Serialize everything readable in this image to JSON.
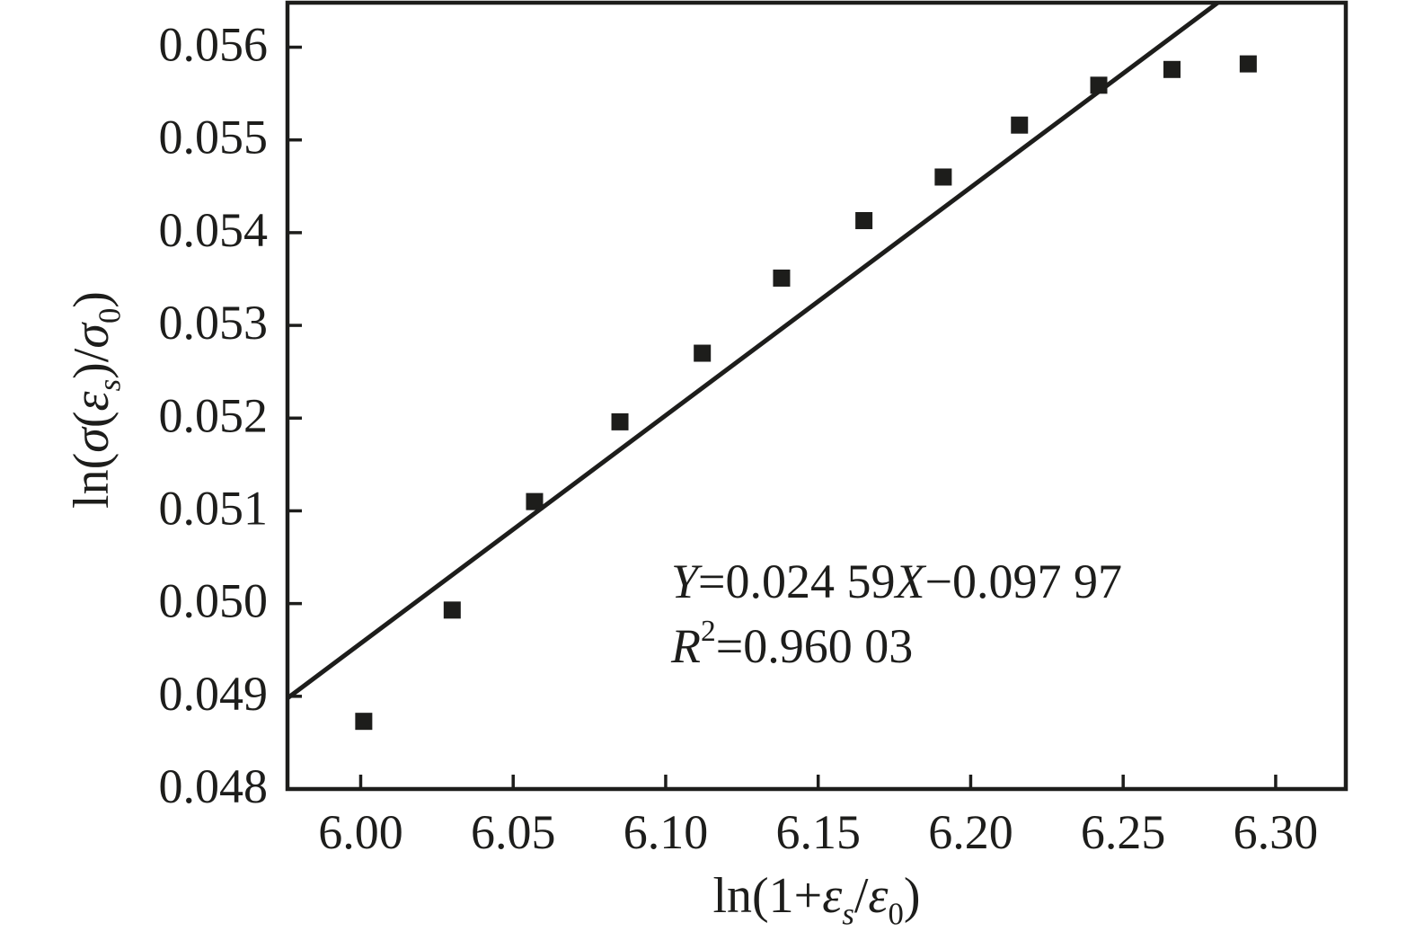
{
  "figure": {
    "background_color": "#ffffff",
    "ink_color": "#1d1d1b"
  },
  "chart_data": {
    "type": "scatter",
    "title": "",
    "xlabel": "ln(1+εₛ/ε₀)",
    "ylabel": "ln(σ(εₛ)/σ₀)",
    "xlabel_parts": [
      {
        "t": "ln(1+"
      },
      {
        "t": "ε",
        "i": true
      },
      {
        "t": "s",
        "sub": true,
        "i": true
      },
      {
        "t": "/"
      },
      {
        "t": "ε",
        "i": true
      },
      {
        "t": "0",
        "sub": true
      },
      {
        "t": ")"
      }
    ],
    "ylabel_parts": [
      {
        "t": "ln("
      },
      {
        "t": "σ",
        "i": true
      },
      {
        "t": "("
      },
      {
        "t": "ε",
        "i": true
      },
      {
        "t": "s",
        "sub": true,
        "i": true
      },
      {
        "t": ")/"
      },
      {
        "t": "σ",
        "i": true
      },
      {
        "t": "0",
        "sub": true
      },
      {
        "t": ")"
      }
    ],
    "xlim": [
      5.976,
      6.323
    ],
    "ylim": [
      0.048,
      0.05648
    ],
    "x_ticks": [
      6.0,
      6.05,
      6.1,
      6.15,
      6.2,
      6.25,
      6.3
    ],
    "x_tick_labels": [
      "6.00",
      "6.05",
      "6.10",
      "6.15",
      "6.20",
      "6.25",
      "6.30"
    ],
    "y_ticks": [
      0.048,
      0.049,
      0.05,
      0.051,
      0.052,
      0.053,
      0.054,
      0.055,
      0.056
    ],
    "y_tick_labels": [
      "0.048",
      "0.049",
      "0.050",
      "0.051",
      "0.052",
      "0.053",
      "0.054",
      "0.055",
      "0.056"
    ],
    "grid": false,
    "legend": null,
    "tick_direction": "in",
    "series": [
      {
        "name": "measured-data",
        "type": "scatter",
        "marker": "filled-square",
        "color": "#1d1d1b",
        "points": [
          [
            6.001,
            0.04873
          ],
          [
            6.03,
            0.04993
          ],
          [
            6.057,
            0.0511
          ],
          [
            6.085,
            0.05196
          ],
          [
            6.112,
            0.0527
          ],
          [
            6.138,
            0.05351
          ],
          [
            6.165,
            0.05413
          ],
          [
            6.191,
            0.0546
          ],
          [
            6.216,
            0.05516
          ],
          [
            6.242,
            0.05559
          ],
          [
            6.266,
            0.05576
          ],
          [
            6.291,
            0.05582
          ]
        ]
      },
      {
        "name": "linear-fit",
        "type": "line",
        "color": "#1d1d1b",
        "slope": 0.02459,
        "intercept": -0.09797
      }
    ],
    "annotation": {
      "equation": "Y=0.024 59X−0.097 97",
      "equation_parts": [
        {
          "t": "Y",
          "i": true
        },
        {
          "t": "=0.024 59"
        },
        {
          "t": "X",
          "i": true
        },
        {
          "t": "−0.097 97"
        }
      ],
      "r_squared": "R²=0.960 03",
      "r_squared_parts": [
        {
          "t": "R",
          "i": true
        },
        {
          "t": "2",
          "sup": true
        },
        {
          "t": "=0.960 03"
        }
      ]
    }
  }
}
